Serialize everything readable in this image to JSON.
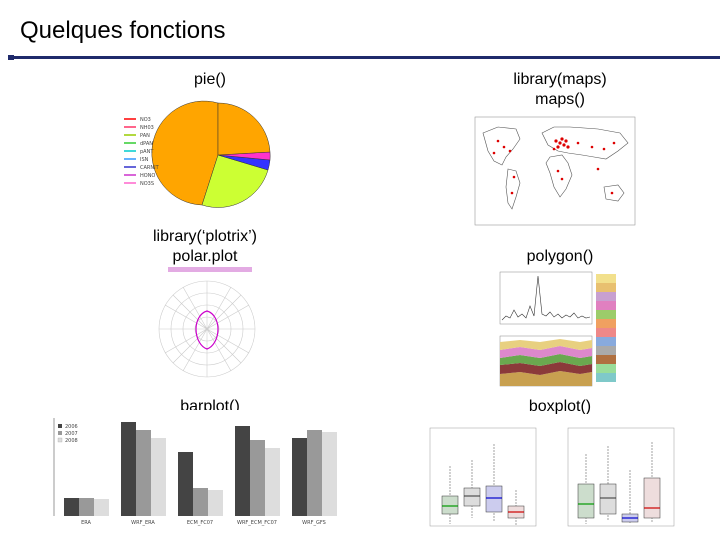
{
  "slide": {
    "title": "Quelques fonctions"
  },
  "labels": {
    "pie": "pie()",
    "maps_line1": "library(maps)",
    "maps_line2": "maps()",
    "plotrix_line1": "library(‘plotrix’)",
    "plotrix_line2": "polar.plot",
    "polygon": "polygon()",
    "barplot": "barplot()",
    "boxplot": "boxplot()"
  },
  "pie_legend": [
    "NO3",
    "NH03",
    "PAN",
    "dPAN",
    "pANT",
    "ISN",
    "CARNIT",
    "HONO",
    "NO3S"
  ],
  "colors": {
    "rule": "#1f2a6b",
    "pie_orange": "#ffa500",
    "pie_lime": "#ccff33",
    "polar_magenta": "#cc00cc",
    "bar_dark": "#444444",
    "bar_mid": "#999999",
    "bar_light": "#dddddd"
  },
  "barplot": {
    "categories": [
      "ERA",
      "WRF_ERA",
      "ECM_FC07",
      "WRF_ECM_FC07",
      "WRF_GFS"
    ],
    "legend": [
      "2006",
      "2007",
      "2008"
    ]
  }
}
